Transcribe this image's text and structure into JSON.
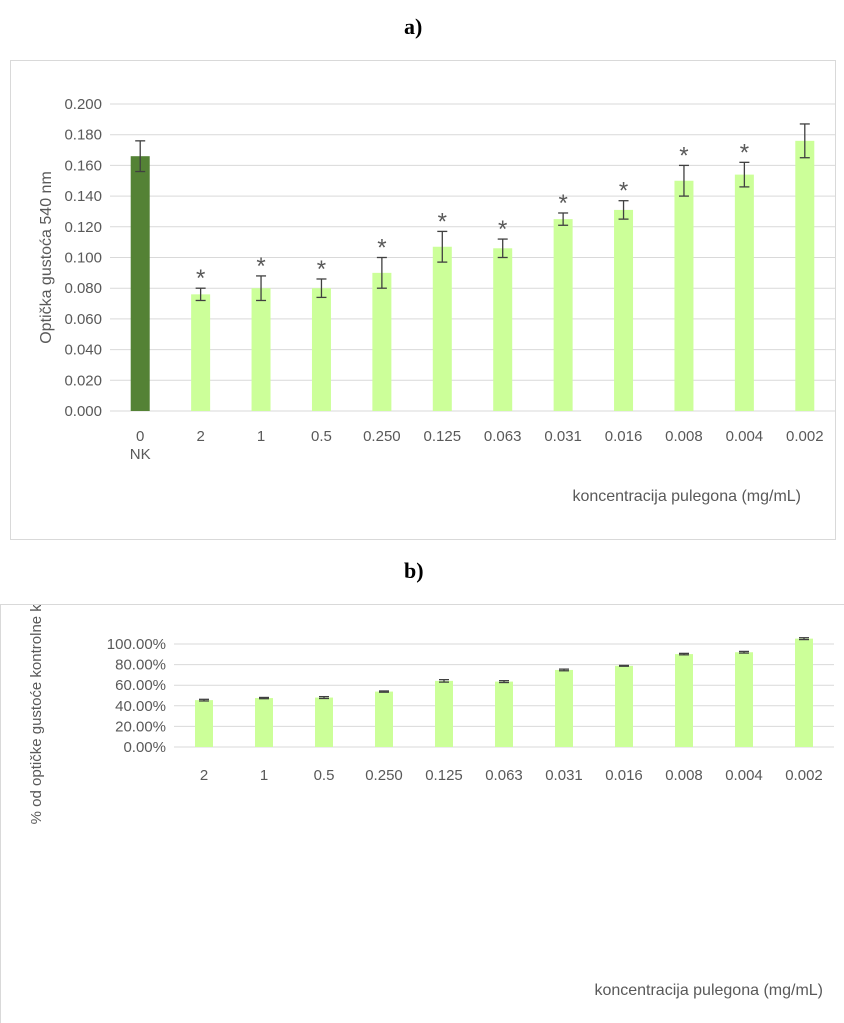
{
  "panels": {
    "a_label": "a)",
    "b_label": "b)"
  },
  "colors": {
    "control_bar": "#548235",
    "treatment_bar": "#ccff99",
    "gridline": "#d9d9d9",
    "error_bar": "#404040",
    "text": "#595959"
  },
  "chart_data": [
    {
      "type": "bar",
      "title": "",
      "ylabel": "Optička gustoća 540 nm",
      "xlabel": "koncentracija pulegona (mg/mL)",
      "ylim": [
        0,
        0.2
      ],
      "yticks": [
        "0.000",
        "0.020",
        "0.040",
        "0.060",
        "0.080",
        "0.100",
        "0.120",
        "0.140",
        "0.160",
        "0.180",
        "0.200"
      ],
      "grid": true,
      "legend": "none",
      "categories": [
        "0",
        "2",
        "1",
        "0.5",
        "0.250",
        "0.125",
        "0.063",
        "0.031",
        "0.016",
        "0.008",
        "0.004",
        "0.002"
      ],
      "category_sublabels": [
        "NK",
        "",
        "",
        "",
        "",
        "",
        "",
        "",
        "",
        "",
        "",
        ""
      ],
      "values": [
        0.166,
        0.076,
        0.08,
        0.08,
        0.09,
        0.107,
        0.106,
        0.125,
        0.131,
        0.15,
        0.154,
        0.176
      ],
      "errors": [
        0.01,
        0.004,
        0.008,
        0.006,
        0.01,
        0.01,
        0.006,
        0.004,
        0.006,
        0.01,
        0.008,
        0.011
      ],
      "annotations": [
        "",
        "*",
        "*",
        "*",
        "*",
        "*",
        "*",
        "*",
        "*",
        "*",
        "*",
        ""
      ]
    },
    {
      "type": "bar",
      "title": "",
      "ylabel": "% od optičke gustoće kontrolne kulture",
      "xlabel": "koncentracija pulegona (mg/mL)",
      "ylim": [
        0,
        100
      ],
      "yticks": [
        "0.00%",
        "20.00%",
        "40.00%",
        "60.00%",
        "80.00%",
        "100.00%"
      ],
      "grid": true,
      "legend": "none",
      "categories": [
        "2",
        "1",
        "0.5",
        "0.250",
        "0.125",
        "0.063",
        "0.031",
        "0.016",
        "0.008",
        "0.004",
        "0.002"
      ],
      "values": [
        45.5,
        47.5,
        48.0,
        53.8,
        64.2,
        63.5,
        74.8,
        78.8,
        90.2,
        92.0,
        105.2
      ],
      "errors": [
        0.8,
        0.6,
        0.9,
        0.6,
        1.2,
        0.9,
        0.8,
        0.4,
        0.7,
        0.8,
        0.9
      ]
    }
  ]
}
